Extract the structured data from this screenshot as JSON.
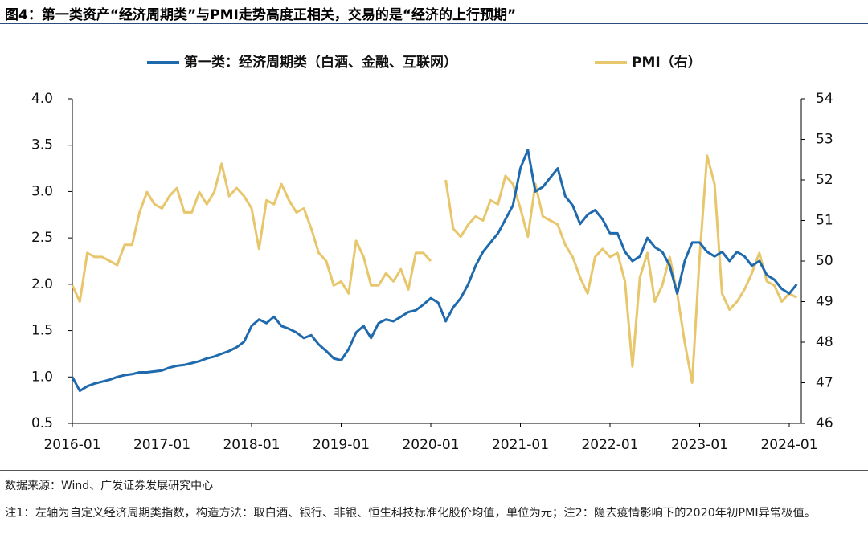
{
  "chart_data": {
    "type": "line",
    "title": "图4：第一类资产“经济周期类”与PMI走势高度正相关，交易的是“经济的上行预期”",
    "source": "数据来源：Wind、广发证券发展研究中心",
    "note": "注1：左轴为自定义经济周期类指数，构造方法：取白酒、银行、非银、恒生科技标准化股价均值，单位为元；注2：隐去疫情影响下的2020年初PMI异常极值。",
    "x": [
      "2016-01",
      "2016-02",
      "2016-03",
      "2016-04",
      "2016-05",
      "2016-06",
      "2016-07",
      "2016-08",
      "2016-09",
      "2016-10",
      "2016-11",
      "2016-12",
      "2017-01",
      "2017-02",
      "2017-03",
      "2017-04",
      "2017-05",
      "2017-06",
      "2017-07",
      "2017-08",
      "2017-09",
      "2017-10",
      "2017-11",
      "2017-12",
      "2018-01",
      "2018-02",
      "2018-03",
      "2018-04",
      "2018-05",
      "2018-06",
      "2018-07",
      "2018-08",
      "2018-09",
      "2018-10",
      "2018-11",
      "2018-12",
      "2019-01",
      "2019-02",
      "2019-03",
      "2019-04",
      "2019-05",
      "2019-06",
      "2019-07",
      "2019-08",
      "2019-09",
      "2019-10",
      "2019-11",
      "2019-12",
      "2020-01",
      "2020-02",
      "2020-03",
      "2020-04",
      "2020-05",
      "2020-06",
      "2020-07",
      "2020-08",
      "2020-09",
      "2020-10",
      "2020-11",
      "2020-12",
      "2021-01",
      "2021-02",
      "2021-03",
      "2021-04",
      "2021-05",
      "2021-06",
      "2021-07",
      "2021-08",
      "2021-09",
      "2021-10",
      "2021-11",
      "2021-12",
      "2022-01",
      "2022-02",
      "2022-03",
      "2022-04",
      "2022-05",
      "2022-06",
      "2022-07",
      "2022-08",
      "2022-09",
      "2022-10",
      "2022-11",
      "2022-12",
      "2023-01",
      "2023-02",
      "2023-03",
      "2023-04",
      "2023-05",
      "2023-06",
      "2023-07",
      "2023-08",
      "2023-09",
      "2023-10",
      "2023-11",
      "2023-12",
      "2024-01",
      "2024-02"
    ],
    "xlim": [
      "2016-01",
      "2024-01"
    ],
    "xticks": [
      "2016-01",
      "2017-01",
      "2018-01",
      "2019-01",
      "2020-01",
      "2021-01",
      "2022-01",
      "2023-01",
      "2024-01"
    ],
    "ylim": [
      0.5,
      4.0
    ],
    "yticks": [
      {
        "value": 0.5,
        "label": "0.5"
      },
      {
        "value": 1.0,
        "label": "1.0"
      },
      {
        "value": 1.5,
        "label": "1.5"
      },
      {
        "value": 2.0,
        "label": "2.0"
      },
      {
        "value": 2.5,
        "label": "2.5"
      },
      {
        "value": 3.0,
        "label": "3.0"
      },
      {
        "value": 3.5,
        "label": "3.5"
      },
      {
        "value": 4.0,
        "label": "4.0"
      }
    ],
    "y2lim": [
      46,
      54
    ],
    "y2ticks": [
      46,
      47,
      48,
      49,
      50,
      51,
      52,
      53,
      54
    ],
    "series": [
      {
        "name": "第一类：经济周期类（白酒、金融、互联网）",
        "color": "#1f6aad",
        "values": [
          1.0,
          0.85,
          0.9,
          0.93,
          0.95,
          0.97,
          1.0,
          1.02,
          1.03,
          1.05,
          1.05,
          1.06,
          1.07,
          1.1,
          1.12,
          1.13,
          1.15,
          1.17,
          1.2,
          1.22,
          1.25,
          1.28,
          1.32,
          1.38,
          1.55,
          1.62,
          1.58,
          1.65,
          1.55,
          1.52,
          1.48,
          1.42,
          1.45,
          1.35,
          1.28,
          1.2,
          1.18,
          1.3,
          1.48,
          1.55,
          1.42,
          1.58,
          1.62,
          1.6,
          1.65,
          1.7,
          1.72,
          1.78,
          1.85,
          1.8,
          1.6,
          1.75,
          1.85,
          2.0,
          2.2,
          2.35,
          2.45,
          2.55,
          2.7,
          2.85,
          3.25,
          3.45,
          3.0,
          3.05,
          3.15,
          3.25,
          2.95,
          2.85,
          2.65,
          2.75,
          2.8,
          2.7,
          2.55,
          2.55,
          2.35,
          2.25,
          2.3,
          2.5,
          2.4,
          2.35,
          2.2,
          1.9,
          2.25,
          2.45,
          2.45,
          2.35,
          2.3,
          2.35,
          2.25,
          2.35,
          2.3,
          2.2,
          2.25,
          2.1,
          2.05,
          1.95,
          1.9,
          2.0
        ]
      },
      {
        "name": "PMI（右）",
        "color": "#e8c66c",
        "axis": "y2",
        "values": [
          49.4,
          49.0,
          50.2,
          50.1,
          50.1,
          50.0,
          49.9,
          50.4,
          50.4,
          51.2,
          51.7,
          51.4,
          51.3,
          51.6,
          51.8,
          51.2,
          51.2,
          51.7,
          51.4,
          51.7,
          52.4,
          51.6,
          51.8,
          51.6,
          51.3,
          50.3,
          51.5,
          51.4,
          51.9,
          51.5,
          51.2,
          51.3,
          50.8,
          50.2,
          50.0,
          49.4,
          49.5,
          49.2,
          50.5,
          50.1,
          49.4,
          49.4,
          49.7,
          49.5,
          49.8,
          49.3,
          50.2,
          50.2,
          50.0,
          null,
          52.0,
          50.8,
          50.6,
          50.9,
          51.1,
          51.0,
          51.5,
          51.4,
          52.1,
          51.9,
          51.3,
          50.6,
          51.9,
          51.1,
          51.0,
          50.9,
          50.4,
          50.1,
          49.6,
          49.2,
          50.1,
          50.3,
          50.1,
          50.2,
          49.5,
          47.4,
          49.6,
          50.2,
          49.0,
          49.4,
          50.1,
          49.2,
          48.0,
          47.0,
          50.1,
          52.6,
          51.9,
          49.2,
          48.8,
          49.0,
          49.3,
          49.7,
          50.2,
          49.5,
          49.4,
          49.0,
          49.2,
          49.1
        ]
      }
    ]
  }
}
